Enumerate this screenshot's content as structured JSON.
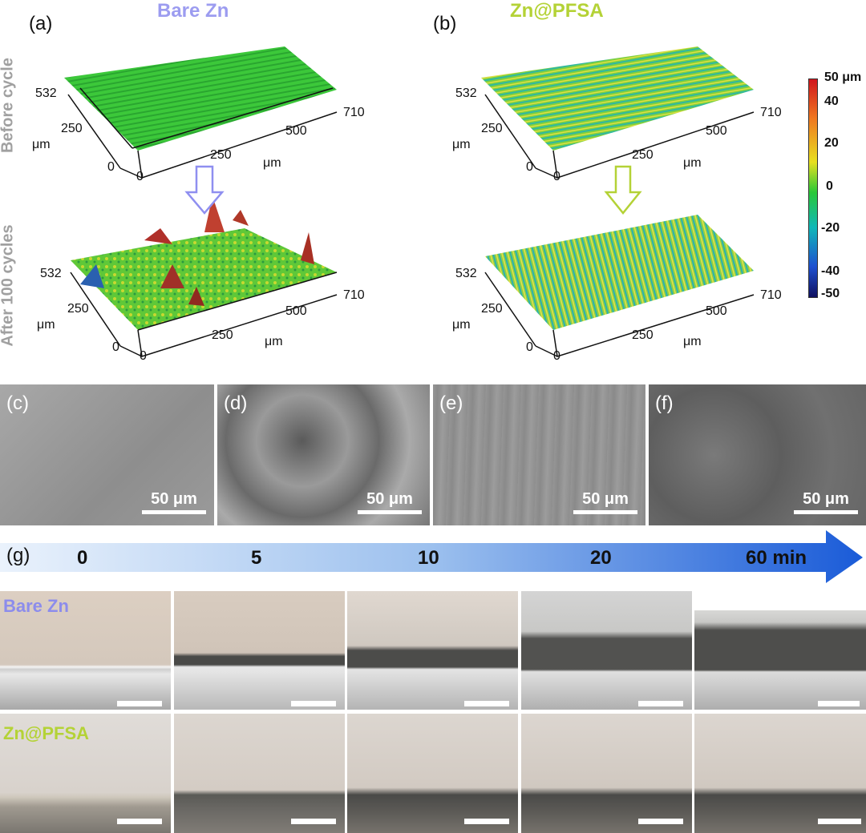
{
  "panels": {
    "a": {
      "letter": "(a)",
      "title": "Bare Zn"
    },
    "b": {
      "letter": "(b)",
      "title": "Zn@PFSA"
    }
  },
  "row_labels": {
    "before": "Before cycle",
    "after": "After 100 cycles"
  },
  "axes": {
    "y_max": "532",
    "y_mid": "250",
    "y_unit": "μm",
    "origin_y": "0",
    "origin_x": "0",
    "x_mid": "250",
    "x_500": "500",
    "x_max": "710",
    "x_unit": "μm"
  },
  "colorbar": {
    "ticks": [
      "50 μm",
      "40",
      "20",
      "0",
      "-20",
      "-40",
      "-50"
    ],
    "colors": [
      "#d0141c",
      "#f07820",
      "#e8e020",
      "#28c838",
      "#10b8b8",
      "#1e50d0",
      "#101060"
    ]
  },
  "sem": [
    {
      "letter": "(c)",
      "scale": "50 μm"
    },
    {
      "letter": "(d)",
      "scale": "50 μm"
    },
    {
      "letter": "(e)",
      "scale": "50 μm"
    },
    {
      "letter": "(f)",
      "scale": "50 μm"
    }
  ],
  "timeline": {
    "letter": "(g)",
    "labels": [
      "0",
      "5",
      "10",
      "20",
      "60 min"
    ]
  },
  "optical_rows": {
    "bare": "Bare Zn",
    "pfsa": "Zn@PFSA"
  },
  "colors": {
    "arrow_bare": "#8f8ff0",
    "arrow_pfsa": "#b4d236",
    "timeline_end": "#1a5bd8"
  }
}
